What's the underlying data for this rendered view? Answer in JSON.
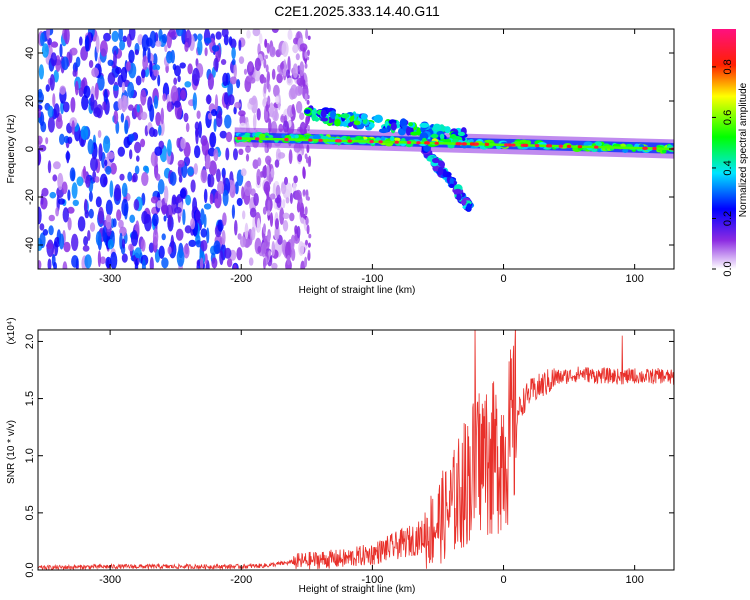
{
  "chart_data": [
    {
      "type": "heatmap",
      "title": "C2E1.2025.333.14.40.G11",
      "xlabel": "Height of straight line (km)",
      "ylabel": "Frequency (Hz)",
      "xlim": [
        -355,
        130
      ],
      "ylim": [
        -50,
        50
      ],
      "xticks": [
        -300,
        -200,
        -100,
        0,
        100
      ],
      "yticks": [
        -40,
        -20,
        0,
        20,
        40
      ],
      "colorbar": {
        "label": "Normalized spectral amplitude",
        "range": [
          0.0,
          0.95
        ],
        "ticks": [
          0.0,
          0.2,
          0.4,
          0.6,
          0.8
        ],
        "tick_labels": [
          "0.0",
          "0.2",
          "0.4",
          "0.6",
          "0.8"
        ],
        "colormap": [
          "#ffffff",
          "#6a0dad",
          "#0000ff",
          "#00ffff",
          "#00ff00",
          "#ffff00",
          "#ff0000",
          "#ff00ff"
        ]
      },
      "features": [
        {
          "name": "noise",
          "x_range": [
            -355,
            -180
          ],
          "y_range": [
            -50,
            50
          ],
          "amplitude": 0.25
        },
        {
          "name": "main-signal",
          "x_range": [
            -205,
            130
          ],
          "y_start": 5,
          "y_end": 0,
          "amplitude": 0.9
        },
        {
          "name": "upper-branch",
          "x_range": [
            -150,
            -30
          ],
          "y_start": 15,
          "y_end": 5,
          "amplitude": 0.45
        },
        {
          "name": "lower-branch",
          "x_range": [
            -60,
            -25
          ],
          "y_start": 0,
          "y_end": -25,
          "amplitude": 0.35
        }
      ]
    },
    {
      "type": "line",
      "xlabel": "Height of straight line (km)",
      "ylabel": "SNR (10 * v/v)",
      "scale_label": "(x10⁴)",
      "xlim": [
        -355,
        130
      ],
      "ylim": [
        0,
        2.1
      ],
      "xticks": [
        -300,
        -200,
        -100,
        0,
        100
      ],
      "yticks": [
        0.0,
        0.5,
        1.0,
        1.5,
        2.0
      ],
      "ytick_labels": [
        "0.0",
        "0.5",
        "1.0",
        "1.5",
        "2.0"
      ],
      "series": [
        {
          "name": "SNR",
          "color": "#e8302a",
          "x": [
            -355,
            -300,
            -250,
            -200,
            -180,
            -160,
            -140,
            -120,
            -100,
            -80,
            -60,
            -50,
            -40,
            -30,
            -20,
            -15,
            -10,
            -5,
            0,
            5,
            10,
            15,
            20,
            30,
            40,
            50,
            60,
            70,
            80,
            90,
            100,
            110,
            120,
            130
          ],
          "values": [
            0.02,
            0.03,
            0.03,
            0.03,
            0.04,
            0.07,
            0.09,
            0.1,
            0.14,
            0.22,
            0.3,
            0.42,
            0.55,
            0.75,
            0.95,
            1.0,
            0.95,
            1.0,
            1.05,
            1.15,
            1.35,
            1.48,
            1.55,
            1.62,
            1.68,
            1.7,
            1.72,
            1.7,
            1.7,
            1.69,
            1.7,
            1.69,
            1.7,
            1.68
          ]
        }
      ]
    }
  ]
}
